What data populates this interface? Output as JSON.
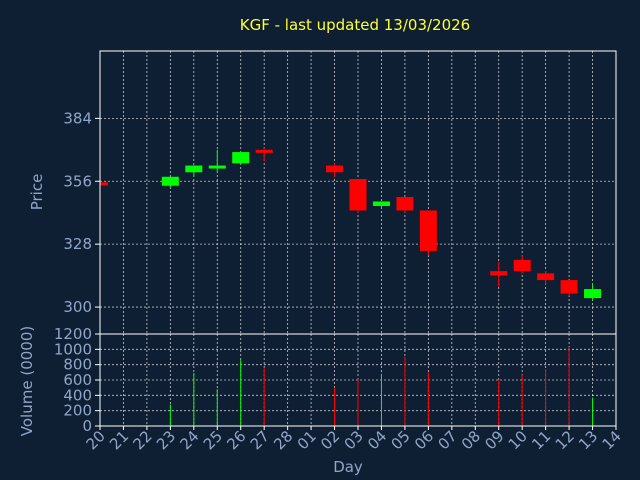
{
  "chart_data": {
    "type": "candlestick",
    "title": "KGF - last updated 13/03/2026",
    "xlabel": "Day",
    "ylabel": "Price",
    "volume_label": "Volume (0000)",
    "x_ticks": [
      "20",
      "21",
      "22",
      "23",
      "24",
      "25",
      "26",
      "27",
      "28",
      "01",
      "02",
      "03",
      "04",
      "05",
      "06",
      "07",
      "08",
      "09",
      "10",
      "11",
      "12",
      "13",
      "14"
    ],
    "y_ticks": [
      300,
      328,
      356,
      384
    ],
    "ylim": [
      288,
      414
    ],
    "volume_ticks": [
      0,
      200,
      400,
      600,
      800,
      1000,
      1200
    ],
    "volume_ylim": [
      0,
      1200
    ],
    "grid": true,
    "up_color": "#00ff00",
    "down_color": "#ff0000",
    "candles": [
      {
        "day": "20",
        "open": 355.5,
        "high": 355.5,
        "low": 354.8,
        "close": 355.0,
        "volume": 0
      },
      {
        "day": "23",
        "open": 354.0,
        "high": 358.0,
        "low": 353.0,
        "close": 358.0,
        "volume": 280
      },
      {
        "day": "24",
        "open": 360.0,
        "high": 363.0,
        "low": 358.0,
        "close": 363.0,
        "volume": 690
      },
      {
        "day": "25",
        "open": 362.0,
        "high": 370.0,
        "low": 360.0,
        "close": 363.0,
        "volume": 480
      },
      {
        "day": "26",
        "open": 364.0,
        "high": 369.0,
        "low": 363.5,
        "close": 369.0,
        "volume": 860
      },
      {
        "day": "27",
        "open": 370.0,
        "high": 371.0,
        "low": 365.0,
        "close": 369.0,
        "volume": 760
      },
      {
        "day": "02",
        "open": 363.0,
        "high": 364.0,
        "low": 358.0,
        "close": 360.0,
        "volume": 500
      },
      {
        "day": "03",
        "open": 357.0,
        "high": 357.0,
        "low": 342.0,
        "close": 343.0,
        "volume": 610
      },
      {
        "day": "04",
        "open": 345.0,
        "high": 347.0,
        "low": 344.0,
        "close": 347.0,
        "volume": 680
      },
      {
        "day": "05",
        "open": 349.0,
        "high": 349.0,
        "low": 342.0,
        "close": 343.0,
        "volume": 900
      },
      {
        "day": "06",
        "open": 343.0,
        "high": 343.0,
        "low": 323.0,
        "close": 325.0,
        "volume": 700
      },
      {
        "day": "09",
        "open": 316.0,
        "high": 320.0,
        "low": 309.0,
        "close": 314.0,
        "volume": 610
      },
      {
        "day": "10",
        "open": 321.0,
        "high": 323.0,
        "low": 315.0,
        "close": 316.0,
        "volume": 670
      },
      {
        "day": "11",
        "open": 315.0,
        "high": 316.0,
        "low": 310.0,
        "close": 312.0,
        "volume": 740
      },
      {
        "day": "12",
        "open": 312.0,
        "high": 312.0,
        "low": 305.0,
        "close": 306.0,
        "volume": 1030
      },
      {
        "day": "13",
        "open": 304.0,
        "high": 310.0,
        "low": 303.0,
        "close": 308.0,
        "volume": 370
      }
    ]
  }
}
